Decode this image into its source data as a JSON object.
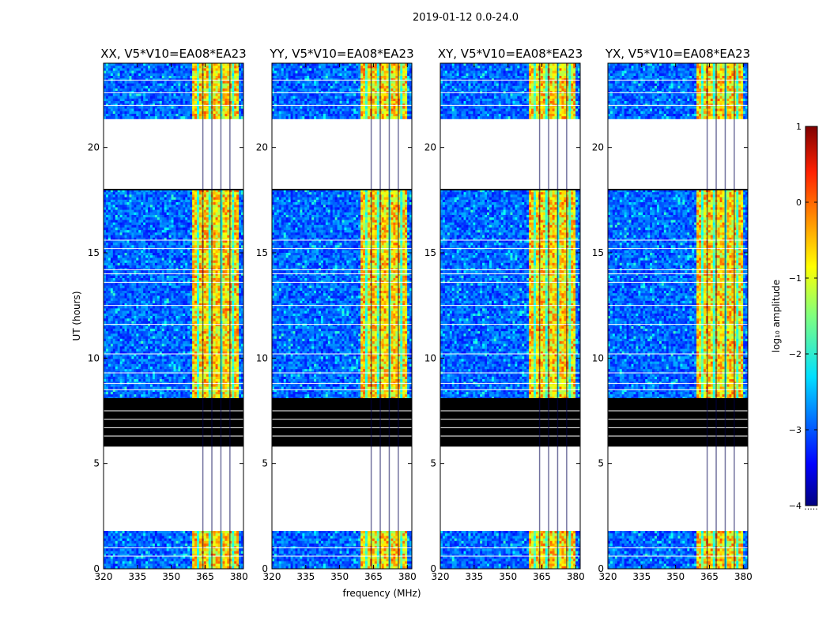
{
  "suptitle": "2019-01-12 0.0-24.0",
  "chart_data": {
    "type": "heatmap",
    "xlabel": "frequency (MHz)",
    "ylabel": "UT (hours)",
    "xlim": [
      320,
      382
    ],
    "ylim": [
      0,
      24
    ],
    "xticks": [
      320,
      335,
      350,
      365,
      380
    ],
    "yticks": [
      0,
      5,
      10,
      15,
      20
    ],
    "panels": [
      {
        "title": "XX, V5*V10=EA08*EA23"
      },
      {
        "title": "YY, V5*V10=EA08*EA23"
      },
      {
        "title": "XY, V5*V10=EA08*EA23"
      },
      {
        "title": "YX, V5*V10=EA08*EA23"
      }
    ],
    "blank_ut_ranges": [
      [
        1.8,
        5.8
      ],
      [
        18.0,
        21.4
      ]
    ],
    "flagged_black_ut_ranges": [
      [
        5.8,
        8.1
      ]
    ],
    "rfi_band_mhz": [
      359.5,
      379.5
    ],
    "colorbar": {
      "label": "log₁₀ amplitude",
      "range": [
        -4,
        1
      ],
      "ticks": [
        "−4",
        "−3",
        "−2",
        "−1",
        "0",
        "1"
      ],
      "colormap": "jet",
      "footnote": "·····"
    }
  }
}
